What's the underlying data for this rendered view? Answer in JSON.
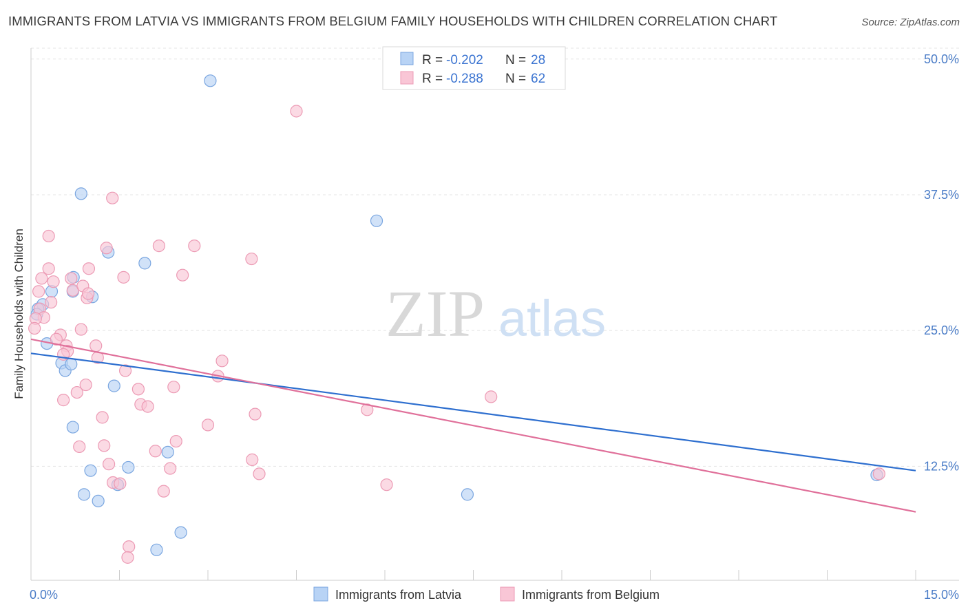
{
  "title": "IMMIGRANTS FROM LATVIA VS IMMIGRANTS FROM BELGIUM FAMILY HOUSEHOLDS WITH CHILDREN CORRELATION CHART",
  "source": "Source: ZipAtlas.com",
  "watermark": {
    "zip": "ZIP",
    "atlas": "atlas"
  },
  "colors": {
    "latvia_fill": "#b8d3f5",
    "latvia_stroke": "#7aa6e0",
    "latvia_line": "#2e6fcf",
    "belgium_fill": "#f9c6d6",
    "belgium_stroke": "#ec9ab4",
    "belgium_line": "#e0709a"
  },
  "legend_top": {
    "latvia": {
      "r_label": "R =",
      "r_value": "-0.202",
      "n_label": "N =",
      "n_value": "28"
    },
    "belgium": {
      "r_label": "R =",
      "r_value": "-0.288",
      "n_label": "N =",
      "n_value": "62"
    }
  },
  "chart_data": {
    "type": "scatter",
    "title": "IMMIGRANTS FROM LATVIA VS IMMIGRANTS FROM BELGIUM FAMILY HOUSEHOLDS WITH CHILDREN CORRELATION CHART",
    "xlabel": "",
    "ylabel": "Family Households with Children",
    "xlim": [
      0,
      15
    ],
    "ylim": [
      2,
      51
    ],
    "x_tick_labels": [
      {
        "value": 0,
        "label": "0.0%"
      },
      {
        "value": 15,
        "label": "15.0%"
      }
    ],
    "y_tick_labels": [
      {
        "value": 12.5,
        "label": "12.5%"
      },
      {
        "value": 25,
        "label": "25.0%"
      },
      {
        "value": 37.5,
        "label": "37.5%"
      },
      {
        "value": 50,
        "label": "50.0%"
      }
    ],
    "grid": "horizontal dashed",
    "legend": "top-center and bottom",
    "series": [
      {
        "name": "Immigrants from Latvia",
        "points": [
          [
            3.04,
            48.0
          ],
          [
            0.85,
            37.6
          ],
          [
            5.86,
            35.1
          ],
          [
            1.31,
            32.2
          ],
          [
            1.93,
            31.2
          ],
          [
            0.72,
            29.9
          ],
          [
            0.71,
            28.6
          ],
          [
            1.04,
            28.1
          ],
          [
            0.35,
            28.6
          ],
          [
            0.2,
            27.4
          ],
          [
            0.12,
            27.0
          ],
          [
            0.1,
            26.5
          ],
          [
            0.27,
            23.8
          ],
          [
            0.52,
            22.0
          ],
          [
            0.58,
            21.3
          ],
          [
            0.68,
            21.9
          ],
          [
            1.41,
            19.9
          ],
          [
            0.71,
            16.1
          ],
          [
            2.32,
            13.8
          ],
          [
            1.01,
            12.1
          ],
          [
            1.65,
            12.4
          ],
          [
            1.47,
            10.8
          ],
          [
            0.9,
            9.9
          ],
          [
            1.14,
            9.3
          ],
          [
            7.4,
            9.9
          ],
          [
            2.54,
            6.4
          ],
          [
            2.13,
            4.8
          ],
          [
            14.34,
            11.7
          ]
        ],
        "trend": [
          [
            0,
            22.9
          ],
          [
            15,
            12.1
          ]
        ]
      },
      {
        "name": "Immigrants from Belgium",
        "points": [
          [
            4.5,
            45.2
          ],
          [
            1.38,
            37.2
          ],
          [
            0.3,
            33.7
          ],
          [
            1.28,
            32.6
          ],
          [
            2.17,
            32.8
          ],
          [
            2.77,
            32.8
          ],
          [
            3.74,
            31.6
          ],
          [
            0.3,
            30.7
          ],
          [
            0.98,
            30.7
          ],
          [
            1.57,
            29.9
          ],
          [
            2.57,
            30.1
          ],
          [
            0.18,
            29.8
          ],
          [
            0.68,
            29.8
          ],
          [
            0.38,
            29.5
          ],
          [
            0.71,
            28.7
          ],
          [
            0.88,
            29.1
          ],
          [
            0.13,
            28.6
          ],
          [
            0.95,
            28.0
          ],
          [
            0.34,
            27.6
          ],
          [
            0.15,
            27.0
          ],
          [
            0.22,
            26.2
          ],
          [
            0.08,
            26.1
          ],
          [
            0.06,
            25.2
          ],
          [
            0.85,
            25.1
          ],
          [
            0.5,
            24.6
          ],
          [
            0.43,
            24.2
          ],
          [
            0.6,
            23.6
          ],
          [
            1.1,
            23.6
          ],
          [
            0.62,
            23.1
          ],
          [
            0.55,
            22.8
          ],
          [
            1.13,
            22.5
          ],
          [
            3.24,
            22.2
          ],
          [
            1.6,
            21.3
          ],
          [
            3.17,
            20.8
          ],
          [
            0.93,
            20.0
          ],
          [
            2.42,
            19.8
          ],
          [
            1.82,
            19.6
          ],
          [
            0.78,
            19.3
          ],
          [
            7.8,
            18.9
          ],
          [
            0.55,
            18.6
          ],
          [
            1.86,
            18.2
          ],
          [
            1.98,
            18.0
          ],
          [
            5.7,
            17.7
          ],
          [
            3.8,
            17.3
          ],
          [
            1.21,
            17.0
          ],
          [
            3.0,
            16.3
          ],
          [
            2.46,
            14.8
          ],
          [
            1.24,
            14.4
          ],
          [
            0.82,
            14.3
          ],
          [
            2.11,
            13.9
          ],
          [
            3.75,
            13.1
          ],
          [
            1.32,
            12.7
          ],
          [
            2.36,
            12.3
          ],
          [
            3.87,
            11.8
          ],
          [
            1.39,
            11.0
          ],
          [
            1.51,
            10.9
          ],
          [
            6.03,
            10.8
          ],
          [
            2.25,
            10.2
          ],
          [
            1.66,
            5.1
          ],
          [
            1.64,
            4.1
          ],
          [
            14.38,
            11.8
          ],
          [
            0.97,
            28.4
          ]
        ],
        "trend": [
          [
            0,
            24.2
          ],
          [
            15,
            8.3
          ]
        ]
      }
    ]
  },
  "bottom_legend": {
    "latvia": "Immigrants from Latvia",
    "belgium": "Immigrants from Belgium"
  }
}
